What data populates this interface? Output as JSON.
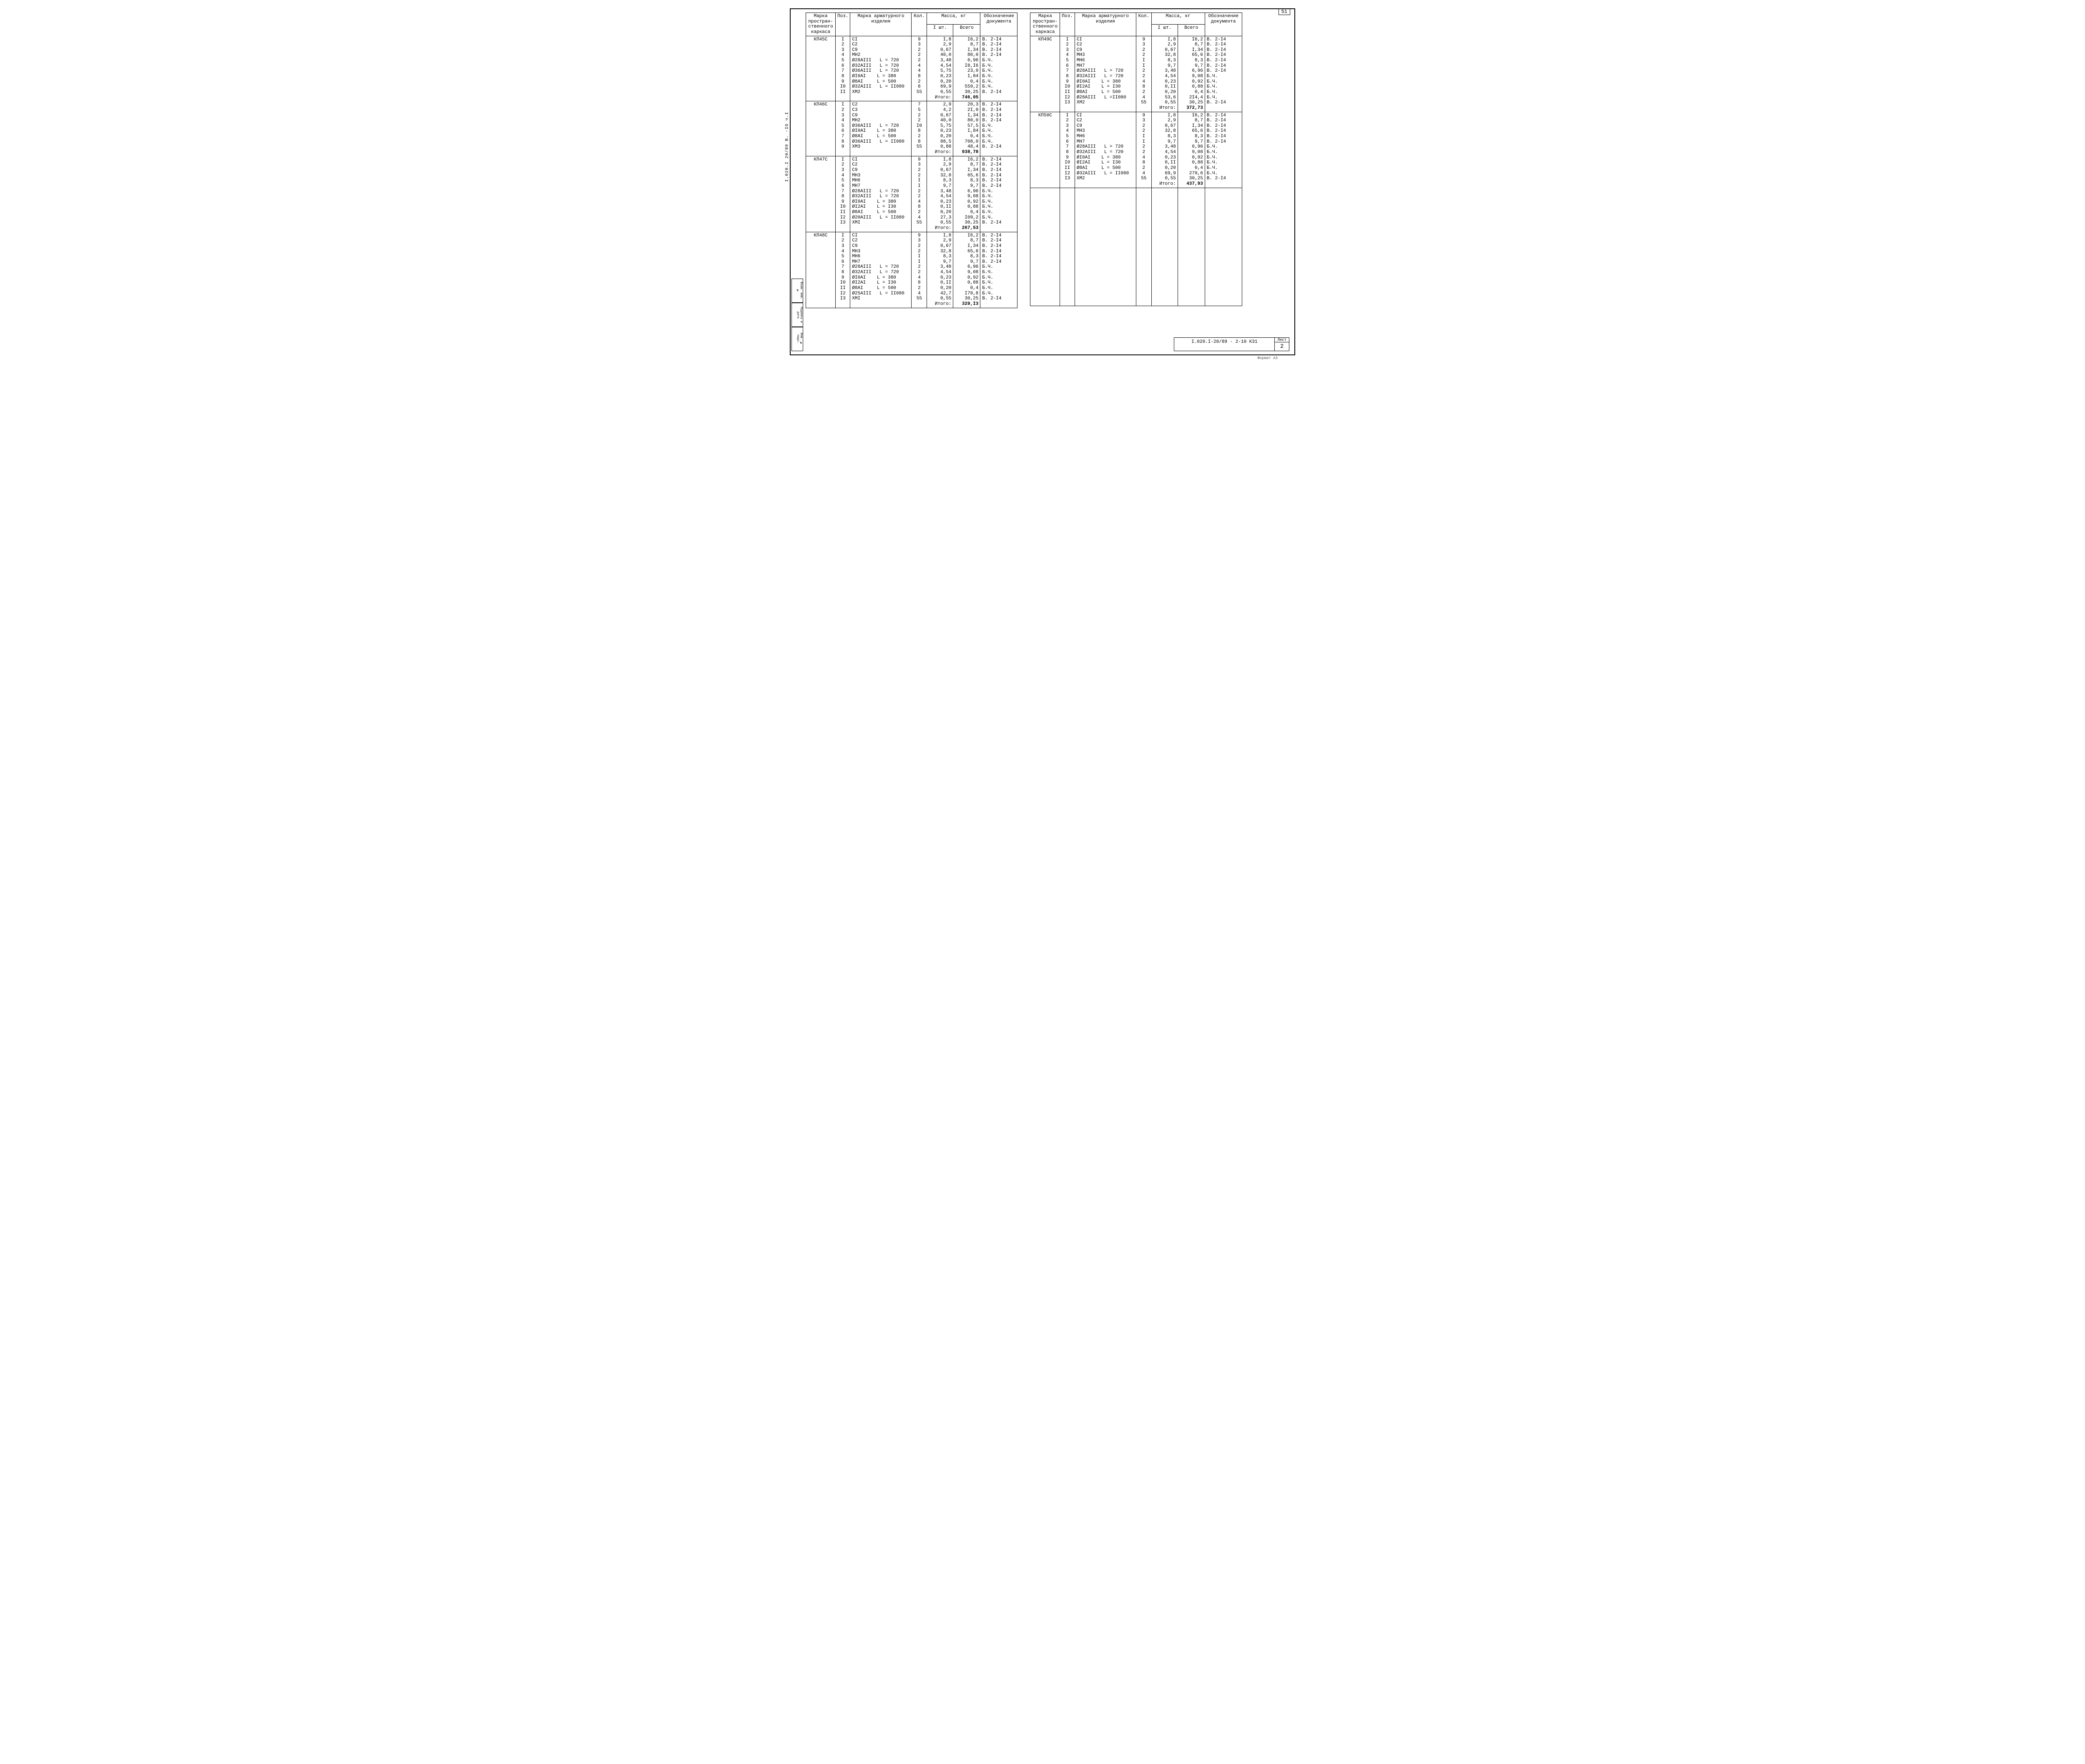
{
  "page_number_top": "51",
  "side_rotated": "I.020.I 20/89   В. ‑IO   ч.I",
  "left_stamp": [
    "Взам. инв. №",
    "Подпись и дата",
    "Инв. № подл."
  ],
  "headers": {
    "mark": "Марка простран-ственного каркаса",
    "pos": "Поз.",
    "item": "Марка арматурного изделия",
    "qty": "Кол.",
    "mass": "Масса, кг",
    "m1": "I шт.",
    "m2": "Всего",
    "doc": "Обозначение документа"
  },
  "itogo_label": "Итого:",
  "groups_left": [
    {
      "mark": "КП45С",
      "rows": [
        {
          "p": "I",
          "i": "СI",
          "q": "9",
          "m1": "I,8",
          "m2": "I6,2",
          "d": "В. 2-I4"
        },
        {
          "p": "2",
          "i": "С2",
          "q": "3",
          "m1": "2,9",
          "m2": "8,7",
          "d": "В. 2-I4"
        },
        {
          "p": "3",
          "i": "С9",
          "q": "2",
          "m1": "0,67",
          "m2": "I,34",
          "d": "В. 2-I4"
        },
        {
          "p": "4",
          "i": "МН2",
          "q": "2",
          "m1": "40,0",
          "m2": "80,0",
          "d": "В. 2-I4"
        },
        {
          "p": "5",
          "i": "Ø28АIII   L = 720",
          "q": "2",
          "m1": "3,48",
          "m2": "6,96",
          "d": "Б.Ч."
        },
        {
          "p": "6",
          "i": "Ø32АIII   L = 720",
          "q": "4",
          "m1": "4,54",
          "m2": "I8,I6",
          "d": "Б.Ч."
        },
        {
          "p": "7",
          "i": "Ø36АIII   L = 720",
          "q": "4",
          "m1": "5,75",
          "m2": "23,0",
          "d": "Б.Ч."
        },
        {
          "p": "8",
          "i": "ØI0АI    L = 380",
          "q": "8",
          "m1": "0,23",
          "m2": "I,84",
          "d": "Б.Ч."
        },
        {
          "p": "9",
          "i": "Ø8АI     L = 500",
          "q": "2",
          "m1": "0,20",
          "m2": "0,4",
          "d": "Б.Ч."
        },
        {
          "p": "I0",
          "i": "Ø32АIII   L = II080",
          "q": "8",
          "m1": "69,9",
          "m2": "559,2",
          "d": "Б.Ч."
        },
        {
          "p": "II",
          "i": "ХМ2",
          "q": "55",
          "m1": "0,55",
          "m2": "30,25",
          "d": "В. 2-I4"
        }
      ],
      "total": "746,05"
    },
    {
      "mark": "КП46С",
      "rows": [
        {
          "p": "I",
          "i": "С2",
          "q": "7",
          "m1": "2,9",
          "m2": "20,3",
          "d": "В. 2-I4"
        },
        {
          "p": "2",
          "i": "С3",
          "q": "5",
          "m1": "4,2",
          "m2": "2I,0",
          "d": "В. 2-I4"
        },
        {
          "p": "3",
          "i": "С9",
          "q": "2",
          "m1": "0,67",
          "m2": "I,34",
          "d": "В. 2-I4"
        },
        {
          "p": "4",
          "i": "МН2",
          "q": "2",
          "m1": "40,0",
          "m2": "80,0",
          "d": "В. 2-I4"
        },
        {
          "p": "5",
          "i": "Ø36АIII   L = 720",
          "q": "I0",
          "m1": "5,75",
          "m2": "57,5",
          "d": "Б.Ч."
        },
        {
          "p": "6",
          "i": "ØI0АI    L = 380",
          "q": "8",
          "m1": "0,23",
          "m2": "I,84",
          "d": "Б.Ч."
        },
        {
          "p": "7",
          "i": "Ø8АI     L = 500",
          "q": "2",
          "m1": "0,20",
          "m2": "0,4",
          "d": "Б.Ч."
        },
        {
          "p": "8",
          "i": "Ø36АIII   L = II080",
          "q": "8",
          "m1": "88,5",
          "m2": "708,0",
          "d": "Б.Ч."
        },
        {
          "p": "9",
          "i": "ХМ3",
          "q": "55",
          "m1": "0,88",
          "m2": "48,4",
          "d": "В. 2-I4"
        }
      ],
      "total": "938,78"
    },
    {
      "mark": "КП47С",
      "rows": [
        {
          "p": "I",
          "i": "СI",
          "q": "9",
          "m1": "I,8",
          "m2": "I6,2",
          "d": "В. 2-I4"
        },
        {
          "p": "2",
          "i": "С2",
          "q": "3",
          "m1": "2,9",
          "m2": "8,7",
          "d": "В. 2-I4"
        },
        {
          "p": "3",
          "i": "С9",
          "q": "2",
          "m1": "0,67",
          "m2": "I,34",
          "d": "В. 2-I4"
        },
        {
          "p": "4",
          "i": "МН3",
          "q": "2",
          "m1": "32,8",
          "m2": "65,6",
          "d": "В. 2-I4"
        },
        {
          "p": "5",
          "i": "МН6",
          "q": "I",
          "m1": "8,3",
          "m2": "8,3",
          "d": "В. 2-I4"
        },
        {
          "p": "6",
          "i": "МН7",
          "q": "I",
          "m1": "9,7",
          "m2": "9,7",
          "d": "В. 2-I4"
        },
        {
          "p": "7",
          "i": "Ø28АIII   L = 720",
          "q": "2",
          "m1": "3,48",
          "m2": "6,96",
          "d": "Б.Ч."
        },
        {
          "p": "8",
          "i": "Ø32АIII   L = 720",
          "q": "2",
          "m1": "4,54",
          "m2": "9,08",
          "d": "Б.Ч."
        },
        {
          "p": "9",
          "i": "ØI0АI    L = 380",
          "q": "4",
          "m1": "0,23",
          "m2": "0,92",
          "d": "Б.Ч."
        },
        {
          "p": "I0",
          "i": "ØI2АI    L = I30",
          "q": "8",
          "m1": "0,II",
          "m2": "0,88",
          "d": "Б.Ч."
        },
        {
          "p": "II",
          "i": "Ø8АI     L = 500",
          "q": "2",
          "m1": "0,20",
          "m2": "0,4",
          "d": "Б.Ч."
        },
        {
          "p": "I2",
          "i": "Ø20АIII   L = II080",
          "q": "4",
          "m1": "27,3",
          "m2": "I09,2",
          "d": "Б.Ч."
        },
        {
          "p": "I3",
          "i": "ХМI",
          "q": "55",
          "m1": "0,55",
          "m2": "30,25",
          "d": "В. 2-I4"
        }
      ],
      "total": "267,53"
    },
    {
      "mark": "КП48С",
      "rows": [
        {
          "p": "I",
          "i": "СI",
          "q": "9",
          "m1": "I,8",
          "m2": "I6,2",
          "d": "В. 2-I4"
        },
        {
          "p": "2",
          "i": "С2",
          "q": "3",
          "m1": "2,9",
          "m2": "8,7",
          "d": "В. 2-I4"
        },
        {
          "p": "3",
          "i": "С9",
          "q": "2",
          "m1": "0,67",
          "m2": "I,34",
          "d": "В. 2-I4"
        },
        {
          "p": "4",
          "i": "МН3",
          "q": "2",
          "m1": "32,8",
          "m2": "65,6",
          "d": "В. 2-I4"
        },
        {
          "p": "5",
          "i": "МН6",
          "q": "I",
          "m1": "8,3",
          "m2": "8,3",
          "d": "В. 2-I4"
        },
        {
          "p": "6",
          "i": "МН7",
          "q": "I",
          "m1": "9,7",
          "m2": "9,7",
          "d": "В. 2-I4"
        },
        {
          "p": "7",
          "i": "Ø28АIII   L = 720",
          "q": "2",
          "m1": "3,48",
          "m2": "6,96",
          "d": "Б.Ч."
        },
        {
          "p": "8",
          "i": "Ø32АIII   L = 720",
          "q": "2",
          "m1": "4,54",
          "m2": "9,08",
          "d": "Б.Ч."
        },
        {
          "p": "9",
          "i": "ØI0АI    L = 380",
          "q": "4",
          "m1": "0,23",
          "m2": "0,92",
          "d": "Б.Ч."
        },
        {
          "p": "I0",
          "i": "ØI2АI    L = I30",
          "q": "8",
          "m1": "0,II",
          "m2": "0,88",
          "d": "Б.Ч."
        },
        {
          "p": "II",
          "i": "Ø8АI     L = 500",
          "q": "2",
          "m1": "0,20",
          "m2": "0,4",
          "d": "Б.Ч."
        },
        {
          "p": "I2",
          "i": "Ø25АIII   L = II080",
          "q": "4",
          "m1": "42,7",
          "m2": "I70,8",
          "d": "Б.Ч."
        },
        {
          "p": "I3",
          "i": "ХМI",
          "q": "55",
          "m1": "0,55",
          "m2": "30,25",
          "d": "В. 2-I4"
        }
      ],
      "total": "329,I3"
    }
  ],
  "groups_right": [
    {
      "mark": "КП49С",
      "rows": [
        {
          "p": "I",
          "i": "СI",
          "q": "9",
          "m1": "I,8",
          "m2": "I6,2",
          "d": "В. 2-I4"
        },
        {
          "p": "2",
          "i": "С2",
          "q": "3",
          "m1": "2,9",
          "m2": "8,7",
          "d": "В. 2-I4"
        },
        {
          "p": "3",
          "i": "С9",
          "q": "2",
          "m1": "0,67",
          "m2": "I,34",
          "d": "В. 2-I4"
        },
        {
          "p": "4",
          "i": "МН3",
          "q": "2",
          "m1": "32,8",
          "m2": "65,6",
          "d": "В. 2-I4"
        },
        {
          "p": "5",
          "i": "МН6",
          "q": "I",
          "m1": "8,3",
          "m2": "8,3",
          "d": "В. 2-I4"
        },
        {
          "p": "6",
          "i": "МН7",
          "q": "I",
          "m1": "9,7",
          "m2": "9,7",
          "d": "В. 2-I4"
        },
        {
          "p": "7",
          "i": "Ø28АIII   L = 720",
          "q": "2",
          "m1": "3,48",
          "m2": "6,96",
          "d": "В. 2-I4"
        },
        {
          "p": "8",
          "i": "Ø32АIII   L = 720",
          "q": "2",
          "m1": "4,54",
          "m2": "9,08",
          "d": "Б.Ч."
        },
        {
          "p": "9",
          "i": "ØI0АI    L = 380",
          "q": "4",
          "m1": "0,23",
          "m2": "0,92",
          "d": "Б.Ч."
        },
        {
          "p": "I0",
          "i": "ØI2АI    L = I30",
          "q": "8",
          "m1": "0,II",
          "m2": "0,88",
          "d": "Б.Ч."
        },
        {
          "p": "II",
          "i": "Ø8АI     L = 500",
          "q": "2",
          "m1": "0,20",
          "m2": "0,4",
          "d": "Б.Ч."
        },
        {
          "p": "I2",
          "i": "Ø28АIII   L =II080",
          "q": "4",
          "m1": "53,6",
          "m2": "2I4,4",
          "d": "Б.Ч."
        },
        {
          "p": "I3",
          "i": "ХМ2",
          "q": "55",
          "m1": "0,55",
          "m2": "30,25",
          "d": "В. 2-I4"
        }
      ],
      "total": "372,73"
    },
    {
      "mark": "КП50С",
      "rows": [
        {
          "p": "I",
          "i": "СI",
          "q": "9",
          "m1": "I,8",
          "m2": "I6,2",
          "d": "В. 2-I4"
        },
        {
          "p": "2",
          "i": "С2",
          "q": "3",
          "m1": "2,9",
          "m2": "8,7",
          "d": "В. 2-I4"
        },
        {
          "p": "3",
          "i": "С9",
          "q": "2",
          "m1": "0,67",
          "m2": "I,34",
          "d": "В. 2-I4"
        },
        {
          "p": "4",
          "i": "МН3",
          "q": "2",
          "m1": "32,8",
          "m2": "65,6",
          "d": "В. 2-I4"
        },
        {
          "p": "5",
          "i": "МН6",
          "q": "I",
          "m1": "8,3",
          "m2": "8,3",
          "d": "В. 2-I4"
        },
        {
          "p": "6",
          "i": "МН7",
          "q": "I",
          "m1": "9,7",
          "m2": "9,7",
          "d": "В. 2-I4"
        },
        {
          "p": "7",
          "i": "Ø28АIII   L = 720",
          "q": "2",
          "m1": "3,48",
          "m2": "6,96",
          "d": "Б.Ч."
        },
        {
          "p": "8",
          "i": "Ø32АIII   L = 720",
          "q": "2",
          "m1": "4,54",
          "m2": "9,08",
          "d": "Б.Ч."
        },
        {
          "p": "9",
          "i": "ØI0АI    L = 380",
          "q": "4",
          "m1": "0,23",
          "m2": "0,92",
          "d": "Б.Ч."
        },
        {
          "p": "I0",
          "i": "ØI2АI    L = I30",
          "q": "8",
          "m1": "0,II",
          "m2": "0,88",
          "d": "Б.Ч."
        },
        {
          "p": "II",
          "i": "Ø8АI     L = 500",
          "q": "2",
          "m1": "0,20",
          "m2": "0,4",
          "d": "Б.Ч."
        },
        {
          "p": "I2",
          "i": "Ø32АIII   L = II080",
          "q": "4",
          "m1": "69,9",
          "m2": "279,6",
          "d": "Б.Ч."
        },
        {
          "p": "I3",
          "i": "ХМ2",
          "q": "55",
          "m1": "0,55",
          "m2": "30,25",
          "d": "В. 2-I4"
        }
      ],
      "total": "437,93"
    }
  ],
  "right_padding_rows": 22,
  "title_block": {
    "code": "I.020.I-20/89 · 2-10  К31",
    "sheet_label": "Лист",
    "sheet_num": "2"
  },
  "format_note": "Формат А3"
}
